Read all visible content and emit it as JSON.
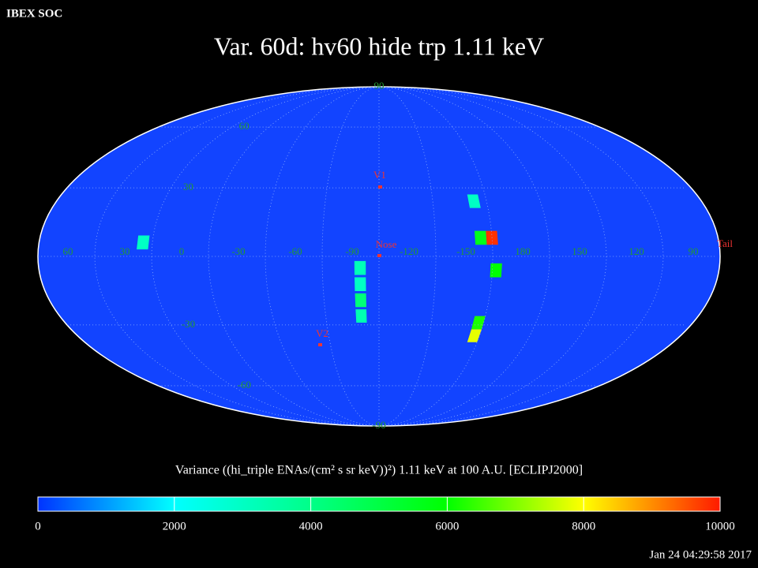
{
  "header": {
    "corner": "IBEX SOC",
    "timestamp": "Jan 24 04:29:58 2017"
  },
  "chart_data": {
    "type": "skymap",
    "title": "Var. 60d: hv60 hide trp 1.11 keV",
    "colorbar_label": "Variance ((hi_triple ENAs/(cm² s sr keV))²) 1.11 keV at 100 A.U. [ECLIPJ2000]",
    "colorscale": [
      "#0033ff",
      "#00ffff",
      "#00ff88",
      "#00ff00",
      "#ffff00",
      "#ff1a00"
    ],
    "clim": [
      0,
      10000
    ],
    "cticks": [
      0,
      2000,
      4000,
      6000,
      8000,
      10000
    ],
    "lon_ticks": [
      60,
      30,
      0,
      -30,
      -60,
      -90,
      -120,
      -150,
      180,
      150,
      120,
      90
    ],
    "lat_ticks": [
      90,
      60,
      30,
      -30,
      -60,
      -90
    ],
    "markers": [
      "V1",
      "Nose",
      "V2",
      "Tail"
    ],
    "cells": [
      {
        "lon": -160,
        "lat": 8,
        "value": 9800
      },
      {
        "lon": -154,
        "lat": 8,
        "value": 5600
      },
      {
        "lon": -162,
        "lat": -6,
        "value": 6000
      },
      {
        "lon": -157,
        "lat": -35,
        "value": 7800
      },
      {
        "lon": -157,
        "lat": -29,
        "value": 6200
      },
      {
        "lon": -153,
        "lat": 24,
        "value": 3000
      },
      {
        "lon": -90,
        "lat": -5,
        "value": 3200
      },
      {
        "lon": -90,
        "lat": -12,
        "value": 3000
      },
      {
        "lon": -90,
        "lat": -19,
        "value": 4200
      },
      {
        "lon": -90,
        "lat": -26,
        "value": 3300
      },
      {
        "lon": 25,
        "lat": 6,
        "value": 3000
      }
    ]
  }
}
